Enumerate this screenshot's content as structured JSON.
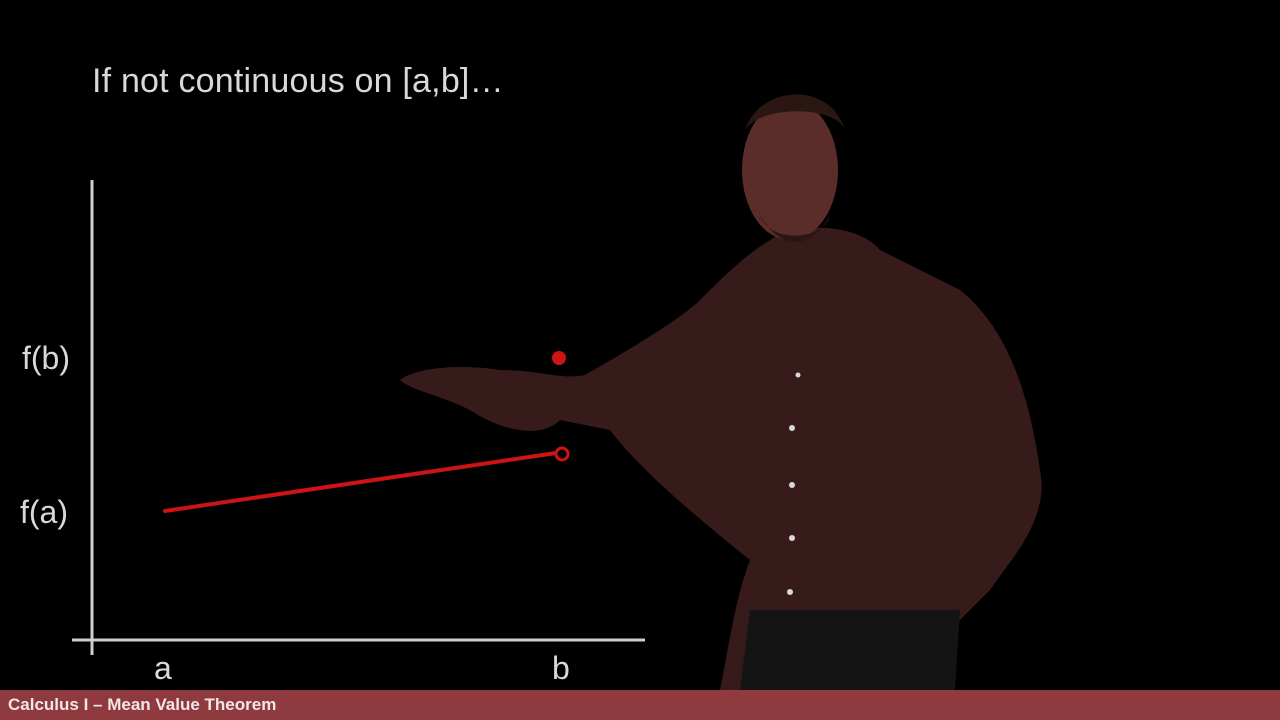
{
  "slide": {
    "title": "If not continuous on [a,b]…"
  },
  "axes": {
    "y_tick_labels": [
      "f(b)",
      "f(a)"
    ],
    "x_tick_labels": [
      "a",
      "b"
    ]
  },
  "graph": {
    "line_color": "#cc1414",
    "axis_color": "#cfcfcf"
  },
  "footer": {
    "text": "Calculus I – Mean Value Theorem",
    "background": "#8e3a3e"
  }
}
